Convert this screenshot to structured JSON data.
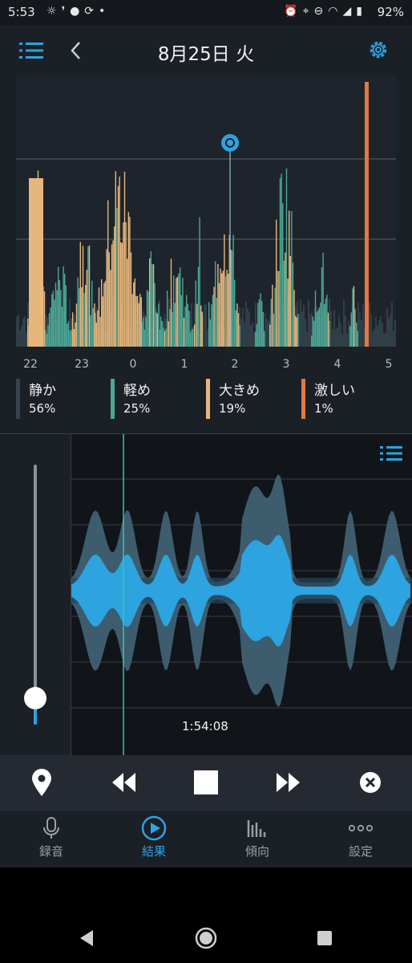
{
  "status_bar": {
    "time": "5:53",
    "battery": "92%",
    "left_icons": [
      "brightness-icon",
      "footprint-icon",
      "bubble-icon",
      "sync-icon",
      "dot-icon"
    ],
    "right_icons": [
      "alarm-icon",
      "location-icon",
      "dnd-icon",
      "wifi-icon",
      "signal-icon",
      "battery-icon"
    ]
  },
  "header": {
    "title": "8月25日 火"
  },
  "chart_data": {
    "type": "bar",
    "x_tick_labels": [
      "22",
      "23",
      "0",
      "1",
      "2",
      "3",
      "4",
      "5"
    ],
    "series": [
      {
        "name": "静か",
        "color": "#34454f"
      },
      {
        "name": "軽め",
        "color": "#4ba895"
      },
      {
        "name": "大きめ",
        "color": "#e6b77c"
      },
      {
        "name": "激しい",
        "color": "#e07a42"
      }
    ],
    "grid": "on"
  },
  "legend": [
    {
      "label": "静か",
      "value": "56%",
      "color": "#34454f"
    },
    {
      "label": "軽め",
      "value": "25%",
      "color": "#4ba895"
    },
    {
      "label": "大きめ",
      "value": "19%",
      "color": "#e6b77c"
    },
    {
      "label": "激しい",
      "value": "1%",
      "color": "#e07a42"
    }
  ],
  "player": {
    "time": "1:54:08",
    "volume_level": 0.1
  },
  "controls": [
    "pin-icon",
    "rewind-icon",
    "stop-icon",
    "fast-forward-icon",
    "close-circle-icon"
  ],
  "tabs": [
    {
      "label": "録音",
      "icon": "microphone-icon",
      "active": false
    },
    {
      "label": "結果",
      "icon": "play-circle-icon",
      "active": true
    },
    {
      "label": "傾向",
      "icon": "bar-chart-icon",
      "active": false
    },
    {
      "label": "設定",
      "icon": "more-dots-icon",
      "active": false
    }
  ],
  "colors": {
    "accent": "#2da3e0",
    "quiet": "#34454f",
    "light": "#4ba895",
    "loud": "#e6b77c",
    "epic": "#e07a42"
  }
}
